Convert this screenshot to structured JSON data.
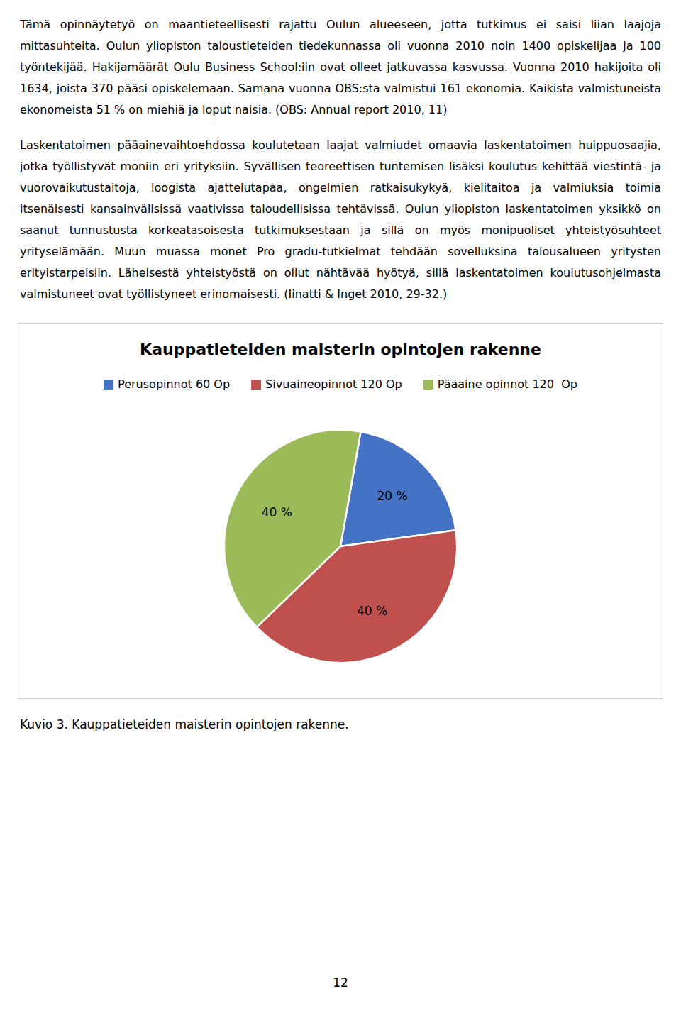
{
  "text_blocks": [
    "Tämä opinnäytetyö on maantieteellisesti rajattu Oulun alueeseen, jotta tutkimus ei saisi liian laajoja mittasuhteita. Oulun yliopiston taloustieteiden tiedekunnassa oli vuonna 2010 noin 1400 opiskelijaa ja 100 työntekijää. Hakijamäärät Oulu Business School:iin ovat olleet jatkuvassa kasvussa. Vuonna 2010 hakijoita oli 1634, joista 370 pääsi opiskelemaan. Samana vuonna OBS:sta valmistui 161 ekonomia. Kaikista valmistuneista ekonomeista 51 % on miehiä ja loput naisia. (OBS: Annual report 2010, 11)",
    "Laskentatoimen pääainevaihtoehdossa koulutetaan laajat valmiudet omaavia laskentatoimen huippuosaajia, jotka työllistyvät moniin eri yrityksiin. Syvällisen teoreettisen tuntemisen lisäksi koulutus kehittää viestintä- ja vuorovaikutustaitoja, loogista ajattelutapaa, ongelmien ratkaisukykyä, kielitaitoa ja valmiuksia toimia itsenäisesti kansainvälisissä vaativissa taloudellisissa tehtävissä. Oulun yliopiston laskentatoimen yksikkö on saanut tunnustusta korkeatasoisesta tutkimuksestaan ja sillä on myös monipuoliset yhteistyösuhteet yrityselämään. Muun muassa monet Pro gradu-tutkielmat tehdään sovelluksina talousalueen yritysten erityistarpeisiin. Läheisestä yhteistyöstä on ollut nähtävää hyötyä, sillä laskentatoimen koulutusohjelmasta valmistuneet ovat työllistyneet erinomaisesti. (Iinatti & Inget 2010, 29-32.)"
  ],
  "chart_data": {
    "type": "pie",
    "title": "Kauppatieteiden maisterin opintojen rakenne",
    "categories": [
      "Perusopinnot 60 Op",
      "Sivuaineopinnot 120 Op",
      "Pääaine opinnot 120  Op"
    ],
    "values": [
      20,
      40,
      40
    ],
    "value_labels": [
      "20 %",
      "40 %",
      "40 %"
    ],
    "colors": [
      "#4472C4",
      "#C0504D",
      "#9BBB59"
    ],
    "data_labels": true,
    "legend": "top"
  },
  "caption": "Kuvio 3. Kauppatieteiden maisterin opintojen rakenne.",
  "page_number": "12"
}
